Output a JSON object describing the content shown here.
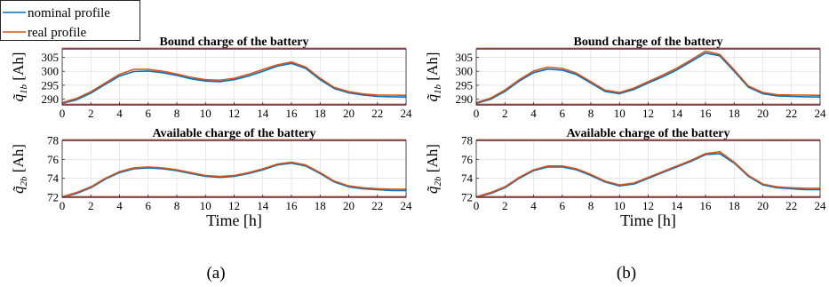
{
  "legend": {
    "entries": [
      {
        "label": "nominal profile",
        "color": "#0072BD"
      },
      {
        "label": "real profile",
        "color": "#D95319"
      }
    ]
  },
  "captions": [
    "(a)",
    "(b)"
  ],
  "colors": {
    "nominal": "#0072BD",
    "real": "#D95319",
    "limit_line": "#7E2F8E",
    "axes": "#262626",
    "grid": "#d9d9d9"
  },
  "chart_data": [
    {
      "type": "line",
      "panel": "a-top",
      "title": "Bound charge of the battery",
      "xlabel": "",
      "ylabel": "q̃1b [Ah]",
      "xlim": [
        0,
        24
      ],
      "ylim": [
        288,
        308
      ],
      "xticks": [
        0,
        2,
        4,
        6,
        8,
        10,
        12,
        14,
        16,
        18,
        20,
        22,
        24
      ],
      "yticks": [
        290,
        295,
        300,
        305
      ],
      "limit_lines": [
        288,
        308
      ],
      "series": [
        {
          "name": "nominal profile",
          "x": [
            0,
            1,
            2,
            3,
            4,
            5,
            6,
            7,
            8,
            9,
            10,
            11,
            12,
            13,
            14,
            15,
            16,
            17,
            18,
            19,
            20,
            21,
            22,
            23,
            24
          ],
          "y": [
            288.5,
            289.8,
            292.2,
            295.3,
            298.3,
            299.9,
            300.1,
            299.5,
            298.5,
            297.3,
            296.5,
            296.3,
            297.0,
            298.3,
            300.0,
            301.8,
            302.8,
            301.0,
            297.0,
            293.8,
            292.3,
            291.5,
            291.0,
            290.9,
            290.8
          ]
        },
        {
          "name": "real profile",
          "x": [
            0,
            1,
            2,
            3,
            4,
            5,
            6,
            7,
            8,
            9,
            10,
            11,
            12,
            13,
            14,
            15,
            16,
            17,
            18,
            19,
            20,
            21,
            22,
            23,
            24
          ],
          "y": [
            288.8,
            290.3,
            292.7,
            295.8,
            298.9,
            300.7,
            300.7,
            300.0,
            299.0,
            297.8,
            297.0,
            296.8,
            297.5,
            298.9,
            300.6,
            302.3,
            303.3,
            301.5,
            297.5,
            294.2,
            292.7,
            291.9,
            291.5,
            291.5,
            291.4
          ]
        }
      ]
    },
    {
      "type": "line",
      "panel": "a-bottom",
      "title": "Available charge of the battery",
      "xlabel": "Time [h]",
      "ylabel": "q̃2b [Ah]",
      "xlim": [
        0,
        24
      ],
      "ylim": [
        72,
        78
      ],
      "xticks": [
        0,
        2,
        4,
        6,
        8,
        10,
        12,
        14,
        16,
        18,
        20,
        22,
        24
      ],
      "yticks": [
        72,
        74,
        76,
        78
      ],
      "limit_lines": [
        72,
        78
      ],
      "series": [
        {
          "name": "nominal profile",
          "x": [
            0,
            1,
            2,
            3,
            4,
            5,
            6,
            7,
            8,
            9,
            10,
            11,
            12,
            13,
            14,
            15,
            16,
            17,
            18,
            19,
            20,
            21,
            22,
            23,
            24
          ],
          "y": [
            72.0,
            72.4,
            73.0,
            73.9,
            74.6,
            75.0,
            75.1,
            75.0,
            74.8,
            74.5,
            74.2,
            74.1,
            74.2,
            74.5,
            74.9,
            75.4,
            75.6,
            75.3,
            74.5,
            73.6,
            73.1,
            72.9,
            72.8,
            72.7,
            72.7
          ]
        },
        {
          "name": "real profile",
          "x": [
            0,
            1,
            2,
            3,
            4,
            5,
            6,
            7,
            8,
            9,
            10,
            11,
            12,
            13,
            14,
            15,
            16,
            17,
            18,
            19,
            20,
            21,
            22,
            23,
            24
          ],
          "y": [
            72.05,
            72.5,
            73.1,
            74.0,
            74.7,
            75.1,
            75.2,
            75.1,
            74.9,
            74.6,
            74.3,
            74.2,
            74.3,
            74.6,
            75.0,
            75.5,
            75.7,
            75.4,
            74.6,
            73.7,
            73.2,
            73.0,
            72.9,
            72.85,
            72.85
          ]
        }
      ]
    },
    {
      "type": "line",
      "panel": "b-top",
      "title": "Bound charge of the battery",
      "xlabel": "",
      "ylabel": "q̃1b [Ah]",
      "xlim": [
        0,
        24
      ],
      "ylim": [
        288,
        308
      ],
      "xticks": [
        0,
        2,
        4,
        6,
        8,
        10,
        12,
        14,
        16,
        18,
        20,
        22,
        24
      ],
      "yticks": [
        290,
        295,
        300,
        305
      ],
      "limit_lines": [
        288,
        308
      ],
      "series": [
        {
          "name": "nominal profile",
          "x": [
            0,
            1,
            2,
            3,
            4,
            5,
            6,
            7,
            8,
            9,
            10,
            11,
            12,
            13,
            14,
            15,
            16,
            17,
            18,
            19,
            20,
            21,
            22,
            23,
            24
          ],
          "y": [
            288.5,
            290.0,
            292.8,
            296.5,
            299.5,
            300.8,
            300.4,
            298.8,
            295.8,
            292.8,
            292.0,
            293.5,
            295.8,
            298.0,
            300.5,
            303.5,
            306.5,
            305.5,
            300.0,
            294.3,
            292.0,
            291.2,
            291.0,
            290.9,
            290.8
          ]
        },
        {
          "name": "real profile",
          "x": [
            0,
            1,
            2,
            3,
            4,
            5,
            6,
            7,
            8,
            9,
            10,
            11,
            12,
            13,
            14,
            15,
            16,
            17,
            18,
            19,
            20,
            21,
            22,
            23,
            24
          ],
          "y": [
            288.8,
            290.4,
            293.3,
            297.0,
            300.1,
            301.5,
            301.0,
            299.3,
            296.3,
            293.2,
            292.4,
            294.0,
            296.3,
            298.6,
            301.1,
            304.1,
            307.2,
            306.0,
            300.5,
            294.7,
            292.4,
            291.6,
            291.5,
            291.5,
            291.4
          ]
        }
      ]
    },
    {
      "type": "line",
      "panel": "b-bottom",
      "title": "Available charge of the battery",
      "xlabel": "Time [h]",
      "ylabel": "q̃2b [Ah]",
      "xlim": [
        0,
        24
      ],
      "ylim": [
        72,
        78
      ],
      "xticks": [
        0,
        2,
        4,
        6,
        8,
        10,
        12,
        14,
        16,
        18,
        20,
        22,
        24
      ],
      "yticks": [
        72,
        74,
        76,
        78
      ],
      "limit_lines": [
        72,
        78
      ],
      "series": [
        {
          "name": "nominal profile",
          "x": [
            0,
            1,
            2,
            3,
            4,
            5,
            6,
            7,
            8,
            9,
            10,
            11,
            12,
            13,
            14,
            15,
            16,
            17,
            18,
            19,
            20,
            21,
            22,
            23,
            24
          ],
          "y": [
            72.0,
            72.4,
            73.0,
            74.0,
            74.8,
            75.2,
            75.2,
            74.9,
            74.3,
            73.6,
            73.2,
            73.4,
            74.0,
            74.6,
            75.2,
            75.8,
            76.5,
            76.6,
            75.6,
            74.2,
            73.3,
            73.0,
            72.9,
            72.8,
            72.8
          ]
        },
        {
          "name": "real profile",
          "x": [
            0,
            1,
            2,
            3,
            4,
            5,
            6,
            7,
            8,
            9,
            10,
            11,
            12,
            13,
            14,
            15,
            16,
            17,
            18,
            19,
            20,
            21,
            22,
            23,
            24
          ],
          "y": [
            72.05,
            72.5,
            73.1,
            74.1,
            74.9,
            75.3,
            75.3,
            75.0,
            74.4,
            73.7,
            73.3,
            73.5,
            74.1,
            74.7,
            75.3,
            75.9,
            76.6,
            76.8,
            75.7,
            74.3,
            73.4,
            73.1,
            73.0,
            72.95,
            72.95
          ]
        }
      ]
    }
  ]
}
